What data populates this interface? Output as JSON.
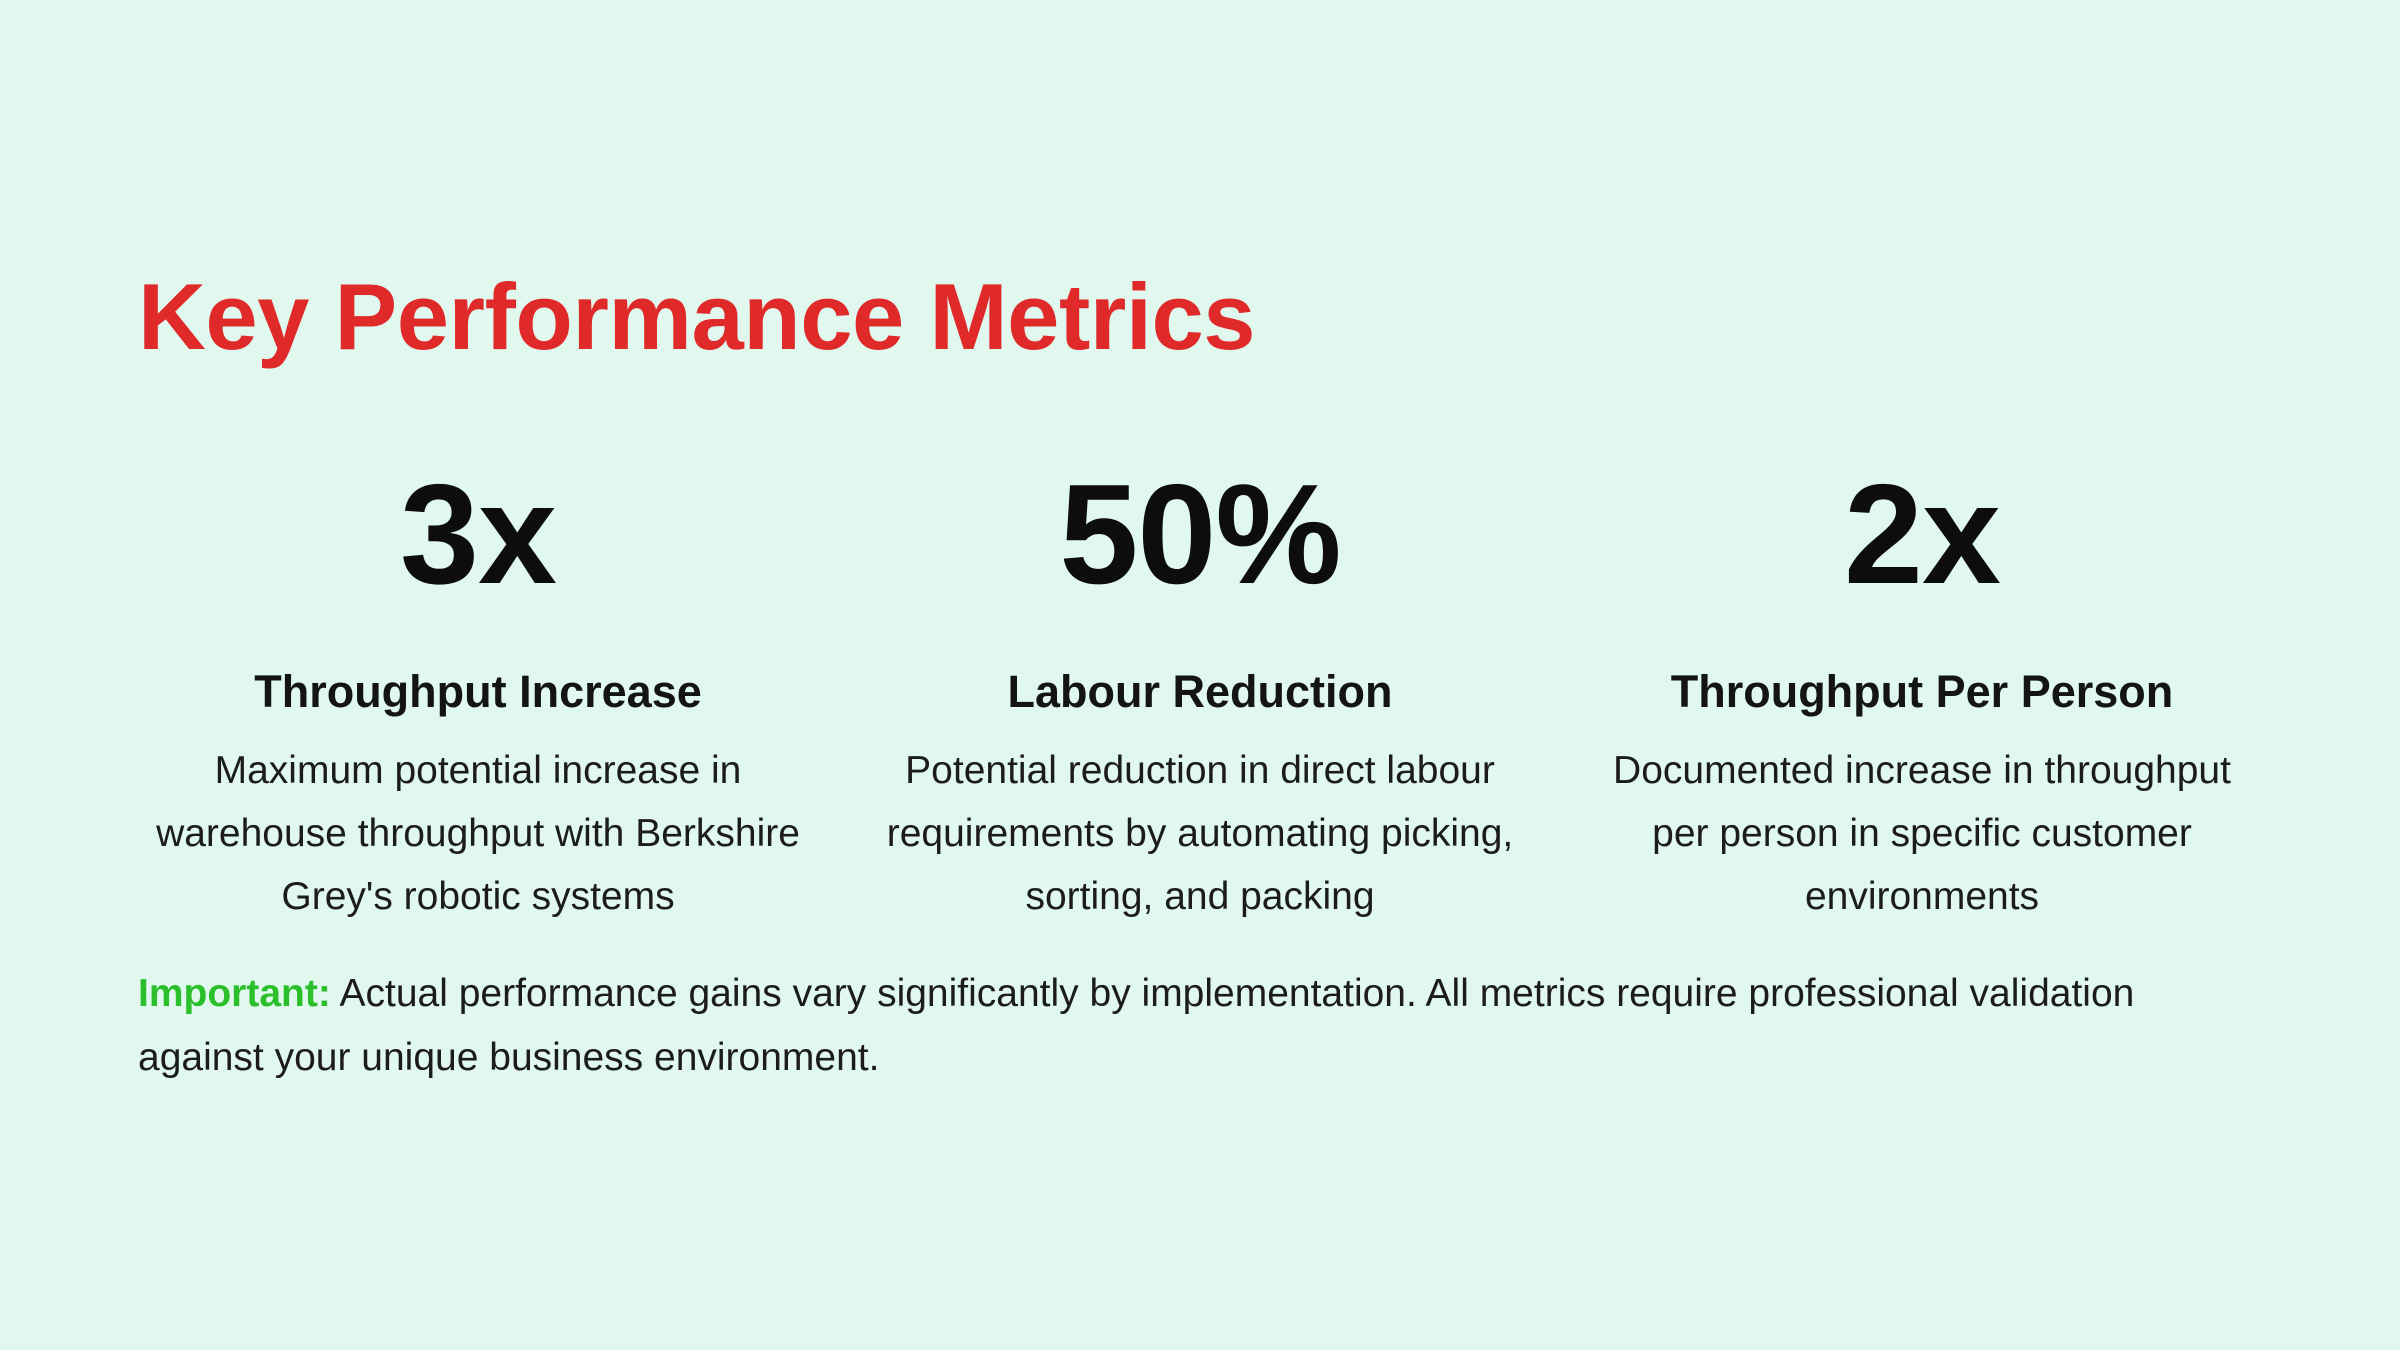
{
  "slide": {
    "title": "Key Performance Metrics",
    "metrics": [
      {
        "value": "3x",
        "label": "Throughput Increase",
        "description": "Maximum potential increase in warehouse throughput with Berkshire Grey's robotic systems"
      },
      {
        "value": "50%",
        "label": "Labour Reduction",
        "description": "Potential reduction in direct labour requirements by automating picking, sorting, and packing"
      },
      {
        "value": "2x",
        "label": "Throughput Per Person",
        "description": "Documented increase in throughput per person in specific customer environments"
      }
    ],
    "note": {
      "label": "Important:",
      "text": " Actual performance gains vary significantly by implementation. All metrics require professional validation against your unique business environment."
    }
  },
  "colors": {
    "background": "#e1f8ef",
    "title": "#e02a2a",
    "note_label": "#2bbf2b",
    "text": "#111111"
  }
}
